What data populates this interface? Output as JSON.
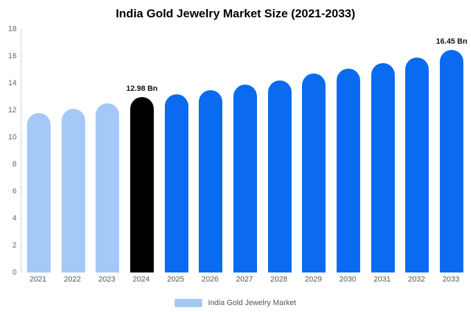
{
  "title": "India Gold Jewelry Market Size (2021-2033)",
  "legend": {
    "label": "India Gold Jewelry Market",
    "swatch_color": "#a4c9f7"
  },
  "colors": {
    "historical": "#a4c9f7",
    "base_year": "#000000",
    "forecast": "#0a6bf0"
  },
  "chart_data": {
    "type": "bar",
    "title": "India Gold Jewelry Market Size (2021-2033)",
    "categories": [
      "2021",
      "2022",
      "2023",
      "2024",
      "2025",
      "2026",
      "2027",
      "2028",
      "2029",
      "2030",
      "2031",
      "2032",
      "2033"
    ],
    "values": [
      11.8,
      12.1,
      12.5,
      12.98,
      13.2,
      13.5,
      13.9,
      14.2,
      14.7,
      15.1,
      15.5,
      15.9,
      16.45
    ],
    "bar_colors": [
      "#a4c9f7",
      "#a4c9f7",
      "#a4c9f7",
      "#000000",
      "#0a6bf0",
      "#0a6bf0",
      "#0a6bf0",
      "#0a6bf0",
      "#0a6bf0",
      "#0a6bf0",
      "#0a6bf0",
      "#0a6bf0",
      "#0a6bf0"
    ],
    "unit": "Bn",
    "xlabel": "",
    "ylabel": "",
    "ylim": [
      0,
      18
    ],
    "ytick_step": 2,
    "grid": false,
    "legend_position": "bottom",
    "legend_entries": [
      "India Gold Jewelry Market"
    ],
    "annotations": [
      {
        "category": "2024",
        "text": "12.98 Bn"
      },
      {
        "category": "2033",
        "text": "16.45 Bn"
      }
    ]
  }
}
